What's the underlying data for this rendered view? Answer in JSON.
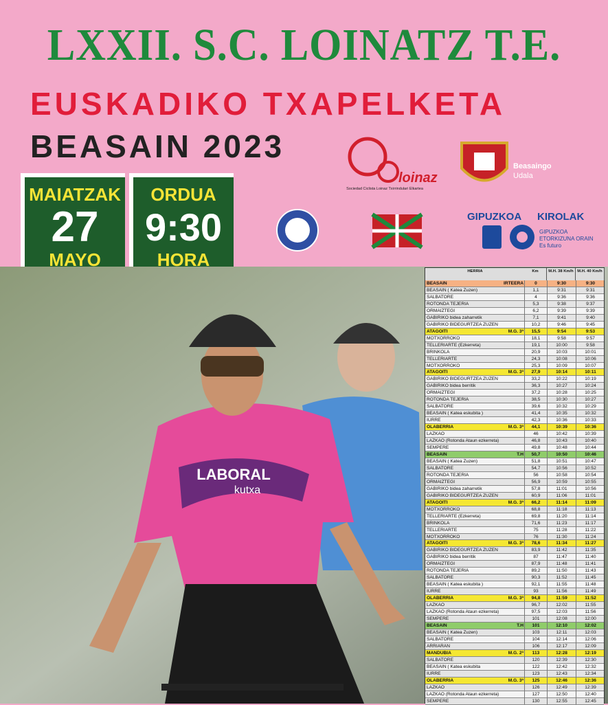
{
  "header": {
    "title": "LXXII. S.C. LOINATZ T.E.",
    "subtitle": "EUSKADIKO TXAPELKETA",
    "location": "BEASAIN 2023"
  },
  "date_box": {
    "label": "MAIATZAK",
    "day": "27",
    "month": "MAYO"
  },
  "time_box": {
    "label": "ORDUA",
    "time": "9:30",
    "unit": "HORA"
  },
  "logos": {
    "club": "loinaz",
    "club_caption": "Sociedad Ciclista Loinaz Txirrindulari Elkartea",
    "town": "Beasaingo",
    "town2": "Udala",
    "kirolak1": "GIPUZKOA",
    "kirolak2": "KIROLAK",
    "gip1": "GIPUZKOA",
    "gip2": "ETORKIZUNA ORAIN",
    "gip3": "Es futuro"
  },
  "photo": {
    "jersey1": "LABORAL",
    "jersey2": "kutxa"
  },
  "table": {
    "headers": [
      "HERRIA",
      "Km",
      "M.H. 38 Km/h",
      "M.H. 40 Km/h"
    ],
    "rows": [
      {
        "cells": [
          "BEASAIN",
          "IRTEERA",
          "0",
          "9:30",
          "9:30"
        ],
        "color": "#f6b183"
      },
      {
        "cells": [
          "BEASAIN ( Katea Zuzen)",
          "",
          "1,1",
          "9:31",
          "9:31"
        ]
      },
      {
        "cells": [
          "SALBATORE",
          "",
          "4",
          "9:36",
          "9:36"
        ]
      },
      {
        "cells": [
          "ROTONDA TEJERIA",
          "",
          "5,3",
          "9:38",
          "9:37"
        ]
      },
      {
        "cells": [
          "ORMAIZTEGI",
          "",
          "6,2",
          "9:39",
          "9:39"
        ]
      },
      {
        "cells": [
          "GABIRIKO bidea zaharretik",
          "",
          "7,1",
          "9:41",
          "9:40"
        ]
      },
      {
        "cells": [
          "GABIRIKO BIDEGURTZEA ZUZEN",
          "",
          "10,2",
          "9:46",
          "9:45"
        ]
      },
      {
        "cells": [
          "ATAGOITI",
          "M.G. 3ª",
          "15,5",
          "9:54",
          "9:53"
        ],
        "color": "#f5e732"
      },
      {
        "cells": [
          "MOTXORROKO",
          "",
          "18,1",
          "9:58",
          "9:57"
        ]
      },
      {
        "cells": [
          "TELLERIARTE (Ezkerreta)",
          "",
          "19,1",
          "10:00",
          "9:58"
        ]
      },
      {
        "cells": [
          "BRINKOLA",
          "",
          "20,9",
          "10:03",
          "10:01"
        ]
      },
      {
        "cells": [
          "TELLERIARTE",
          "",
          "24,3",
          "10:08",
          "10:06"
        ]
      },
      {
        "cells": [
          "MOTXORROKO",
          "",
          "25,3",
          "10:09",
          "10:07"
        ]
      },
      {
        "cells": [
          "ATAGOITI",
          "M.G. 3ª",
          "27,9",
          "10:14",
          "10:11"
        ],
        "color": "#f5e732"
      },
      {
        "cells": [
          "GABIRIKO BIDEGURTZEA ZUZEN",
          "",
          "33,2",
          "10:22",
          "10:19"
        ]
      },
      {
        "cells": [
          "GABIRIKO bidea berritik",
          "",
          "36,3",
          "10:27",
          "10:24"
        ]
      },
      {
        "cells": [
          "ORMAIZTEGI",
          "",
          "37,2",
          "10:28",
          "10:25"
        ]
      },
      {
        "cells": [
          "ROTONDA TEJERIA",
          "",
          "38,5",
          "10:30",
          "10:27"
        ]
      },
      {
        "cells": [
          "SALBATORE",
          "",
          "39,6",
          "10:32",
          "10:29"
        ]
      },
      {
        "cells": [
          "BEASAIN ( Katea eskubita )",
          "",
          "41,4",
          "10:35",
          "10:32"
        ]
      },
      {
        "cells": [
          "IURRE",
          "",
          "42,3",
          "10:36",
          "10:33"
        ]
      },
      {
        "cells": [
          "OLABERRIA",
          "M.G. 3ª",
          "44,1",
          "10:39",
          "10:36"
        ],
        "color": "#f5e732"
      },
      {
        "cells": [
          "LAZKAO",
          "",
          "46",
          "10:42",
          "10:39"
        ]
      },
      {
        "cells": [
          "LAZKAO (Rotonda Ataun ezkerreta)",
          "",
          "46,8",
          "10:43",
          "10:40"
        ]
      },
      {
        "cells": [
          "SEMPERE",
          "",
          "49,8",
          "10:48",
          "10:44"
        ]
      },
      {
        "cells": [
          "BEASAIN",
          "T.H",
          "50,7",
          "10:50",
          "10:46"
        ],
        "color": "#8fcc6a"
      },
      {
        "cells": [
          "BEASAIN ( Katea Zuzen)",
          "",
          "51,8",
          "10:51",
          "10:47"
        ]
      },
      {
        "cells": [
          "SALBATORE",
          "",
          "54,7",
          "10:56",
          "10:52"
        ]
      },
      {
        "cells": [
          "ROTONDA TEJERIA",
          "",
          "56",
          "10:58",
          "10:54"
        ]
      },
      {
        "cells": [
          "ORMAIZTEGI",
          "",
          "56,9",
          "10:59",
          "10:55"
        ]
      },
      {
        "cells": [
          "GABIRIKO bidea zaharretik",
          "",
          "57,8",
          "11:01",
          "10:56"
        ]
      },
      {
        "cells": [
          "GABIRIKO BIDEGURTZEA ZUZEN",
          "",
          "60,9",
          "11:06",
          "11:01"
        ]
      },
      {
        "cells": [
          "ATAGOITI",
          "M.G. 3ª",
          "66,2",
          "11:14",
          "11:09"
        ],
        "color": "#f5e732"
      },
      {
        "cells": [
          "MOTXORROKO",
          "",
          "68,8",
          "11:18",
          "11:13"
        ]
      },
      {
        "cells": [
          "TELLERIARTE (Ezkerreta)",
          "",
          "69,8",
          "11:20",
          "11:14"
        ]
      },
      {
        "cells": [
          "BRINKOLA",
          "",
          "71,6",
          "11:23",
          "11:17"
        ]
      },
      {
        "cells": [
          "TELLERIARTE",
          "",
          "75",
          "11:28",
          "11:22"
        ]
      },
      {
        "cells": [
          "MOTXORROKO",
          "",
          "76",
          "11:30",
          "11:24"
        ]
      },
      {
        "cells": [
          "ATAGOITI",
          "M.G. 3ª",
          "78,6",
          "11:34",
          "11:27"
        ],
        "color": "#f5e732"
      },
      {
        "cells": [
          "GABIRIKO BIDEGURTZEA ZUZEN",
          "",
          "83,9",
          "11:42",
          "11:35"
        ]
      },
      {
        "cells": [
          "GABIRIKO bidea berritik",
          "",
          "87",
          "11:47",
          "11:40"
        ]
      },
      {
        "cells": [
          "ORMAIZTEGI",
          "",
          "87,9",
          "11:48",
          "11:41"
        ]
      },
      {
        "cells": [
          "ROTONDA TEJERIA",
          "",
          "89,2",
          "11:50",
          "11:43"
        ]
      },
      {
        "cells": [
          "SALBATORE",
          "",
          "90,3",
          "11:52",
          "11:45"
        ]
      },
      {
        "cells": [
          "BEASAIN ( Katea eskubita )",
          "",
          "92,1",
          "11:55",
          "11:48"
        ]
      },
      {
        "cells": [
          "IURRE",
          "",
          "93",
          "11:56",
          "11:49"
        ]
      },
      {
        "cells": [
          "OLABERRIA",
          "M.G. 3ª",
          "94,8",
          "11:59",
          "11:52"
        ],
        "color": "#f5e732"
      },
      {
        "cells": [
          "LAZKAO",
          "",
          "96,7",
          "12:02",
          "11:55"
        ]
      },
      {
        "cells": [
          "LAZKAO (Rotonda Ataun ezkerreta)",
          "",
          "97,5",
          "12:03",
          "11:56"
        ]
      },
      {
        "cells": [
          "SEMPERE",
          "",
          "101",
          "12:08",
          "12:00"
        ]
      },
      {
        "cells": [
          "BEASAIN",
          "T.H",
          "101",
          "12:10",
          "12:02"
        ],
        "color": "#8fcc6a"
      },
      {
        "cells": [
          "BEASAIN ( Katea Zuzen)",
          "",
          "103",
          "12:11",
          "12:03"
        ]
      },
      {
        "cells": [
          "SALBATORE",
          "",
          "104",
          "12:14",
          "12:06"
        ]
      },
      {
        "cells": [
          "ARRIARAN",
          "",
          "106",
          "12:17",
          "12:09"
        ]
      },
      {
        "cells": [
          "MANDUBIA",
          "M.G. 2ª",
          "113",
          "12:28",
          "12:19"
        ],
        "color": "#f5e732"
      },
      {
        "cells": [
          "SALBATORE",
          "",
          "120",
          "12:39",
          "12:30"
        ]
      },
      {
        "cells": [
          "BEASAIN ( Katea eskubita",
          "",
          "122",
          "12:42",
          "12:32"
        ]
      },
      {
        "cells": [
          "IURRE",
          "",
          "123",
          "12:43",
          "12:34"
        ]
      },
      {
        "cells": [
          "OLABERRIA",
          "M.G. 3ª",
          "125",
          "12:46",
          "12:36"
        ],
        "color": "#f5e732"
      },
      {
        "cells": [
          "LAZKAO",
          "",
          "126",
          "12:49",
          "12:39"
        ]
      },
      {
        "cells": [
          "LAZKAO (Rotonda Ataun ezkerreta)",
          "",
          "127",
          "12:50",
          "12:40"
        ]
      },
      {
        "cells": [
          "SEMPERE",
          "",
          "130",
          "12:55",
          "12:45"
        ]
      }
    ]
  }
}
